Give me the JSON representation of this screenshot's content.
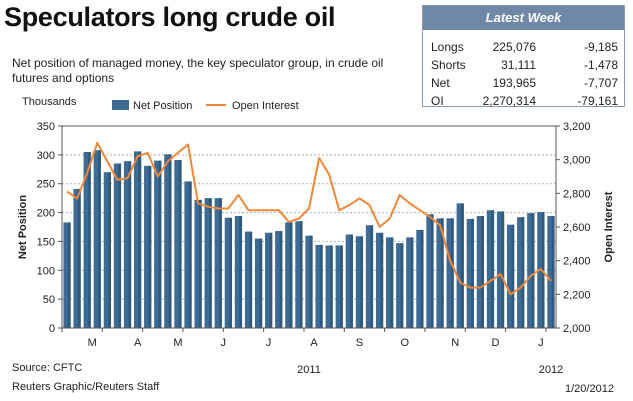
{
  "title": "Speculators long crude oil",
  "subtitle": "Net position of managed money, the key speculator group, in crude oil futures and options",
  "latest_week": {
    "heading": "Latest Week",
    "rows": [
      {
        "label": "Longs",
        "value": "225,076",
        "change": "-9,185"
      },
      {
        "label": "Shorts",
        "value": "31,111",
        "change": "-1,478"
      },
      {
        "label": "Net",
        "value": "193,965",
        "change": "-7,707"
      },
      {
        "label": "OI",
        "value": "2,270,314",
        "change": "-79,161"
      }
    ]
  },
  "units_label": "Thousands",
  "source": "Source: CFTC",
  "credit": "Reuters Graphic/Reuters Staff",
  "date": "1/20/2012",
  "colors": {
    "bar": "#3d6b94",
    "bar_dark": "#274a6b",
    "line": "#f0873a",
    "header": "#6f88a8"
  },
  "chart_data": {
    "type": "bar",
    "ylabel": "Net Position",
    "y2label": "Open Interest",
    "ylim": [
      0,
      350
    ],
    "y2lim": [
      2000,
      3200
    ],
    "yticks": [
      "0",
      "50",
      "100",
      "150",
      "200",
      "250",
      "300",
      "350"
    ],
    "y2ticks": [
      "2,000",
      "2,200",
      "2,400",
      "2,600",
      "2,800",
      "3,000",
      "3,200"
    ],
    "grid": true,
    "legend": {
      "position": "top",
      "entries": [
        "Net Position",
        "Open Interest"
      ]
    },
    "month_labels": [
      "M",
      "A",
      "M",
      "J",
      "J",
      "A",
      "S",
      "O",
      "N",
      "D",
      "J"
    ],
    "month_positions": [
      3,
      7.5,
      11.5,
      16,
      20.5,
      25,
      29.5,
      34,
      39,
      43,
      47.5
    ],
    "year_labels": [
      {
        "label": "2011",
        "pos": 24.5
      },
      {
        "label": "2012",
        "pos": 48.5
      }
    ],
    "series": [
      {
        "name": "Net Position",
        "kind": "bar",
        "values": [
          183,
          241,
          305,
          308,
          270,
          285,
          289,
          306,
          281,
          290,
          301,
          291,
          254,
          222,
          225,
          225,
          191,
          194,
          167,
          155,
          165,
          168,
          183,
          185,
          160,
          144,
          143,
          143,
          162,
          159,
          178,
          165,
          157,
          147,
          157,
          170,
          197,
          190,
          190,
          216,
          189,
          194,
          204,
          202,
          179,
          192,
          199,
          201,
          194
        ]
      },
      {
        "name": "Open Interest",
        "kind": "line",
        "values": [
          2810,
          2770,
          2920,
          3100,
          2990,
          2880,
          2890,
          3020,
          3040,
          2900,
          2990,
          3040,
          3090,
          2740,
          2720,
          2710,
          2710,
          2790,
          2700,
          2700,
          2700,
          2700,
          2630,
          2650,
          2710,
          3010,
          2910,
          2700,
          2730,
          2770,
          2730,
          2600,
          2650,
          2790,
          2740,
          2700,
          2660,
          2610,
          2400,
          2270,
          2240,
          2240,
          2280,
          2320,
          2200,
          2240,
          2310,
          2350,
          2280
        ]
      }
    ]
  }
}
